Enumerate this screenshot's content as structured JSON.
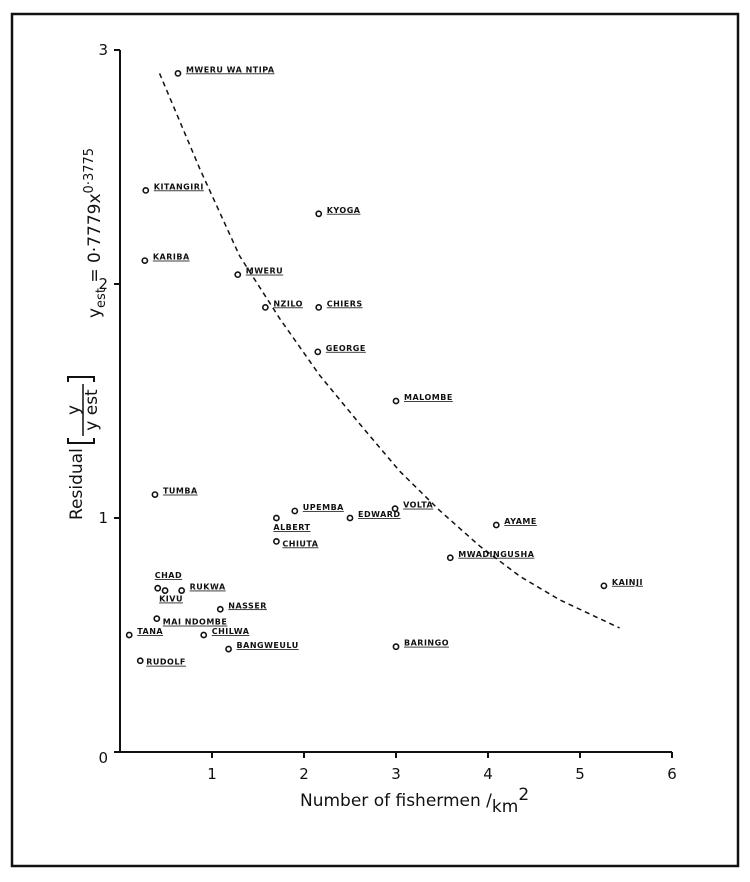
{
  "chart_data": {
    "type": "scatter",
    "xlabel": {
      "text": "Number of fishermen /",
      "unit": "km",
      "sup": "2"
    },
    "ylabel": {
      "text": "Residual",
      "numerator": "y",
      "denominator": "y est"
    },
    "formula": {
      "base": "y",
      "sub": "est",
      "rest": " = 0·7779x",
      "sup": "0·3775"
    },
    "xlim": [
      0,
      6
    ],
    "xticks": [
      1,
      2,
      3,
      4,
      5,
      6
    ],
    "ylim": [
      0,
      3
    ],
    "yticks": [
      0,
      1,
      2,
      3
    ],
    "series": [
      {
        "style": "points",
        "color": "#111111",
        "x": [
          0.63,
          0.28,
          2.16,
          0.27,
          1.28,
          1.58,
          2.16,
          2.15,
          3.0,
          0.38,
          1.9,
          1.7,
          2.5,
          2.99,
          4.09,
          1.7,
          3.59,
          5.26,
          0.41,
          0.49,
          0.67,
          1.09,
          0.4,
          0.1,
          0.91,
          1.18,
          3.0,
          0.22
        ],
        "values": [
          2.9,
          2.4,
          2.3,
          2.1,
          2.04,
          1.9,
          1.9,
          1.71,
          1.5,
          1.1,
          1.03,
          1.0,
          1.0,
          1.04,
          0.97,
          0.9,
          0.83,
          0.71,
          0.7,
          0.69,
          0.69,
          0.61,
          0.57,
          0.5,
          0.5,
          0.44,
          0.45,
          0.39
        ],
        "labels": [
          "MWERU WA NTIPA",
          "KITANGIRI",
          "KYOGA",
          "KARIBA",
          "MWERU",
          "NZILO",
          "CHIERS",
          "GEORGE",
          "MALOMBE",
          "TUMBA",
          "UPEMBA",
          "ALBERT",
          "EDWARD",
          "VOLTA",
          "AYAME",
          "CHIUTA",
          "MWADINGUSHA",
          "KAINJI",
          "CHAD",
          "KIVU",
          "RUKWA",
          "NASSER",
          "MAI NDOMBE",
          "TANA",
          "CHILWA",
          "BANGWEULU",
          "BARINGO",
          "RUDOLF"
        ]
      },
      {
        "style": "dashed",
        "color": "#111111",
        "x": [
          0.43,
          0.87,
          1.3,
          1.74,
          2.17,
          2.61,
          3.04,
          3.48,
          3.91,
          4.35,
          4.78,
          5.43
        ],
        "values": [
          2.9,
          2.49,
          2.12,
          1.85,
          1.61,
          1.4,
          1.2,
          1.03,
          0.88,
          0.75,
          0.65,
          0.53
        ]
      }
    ]
  }
}
